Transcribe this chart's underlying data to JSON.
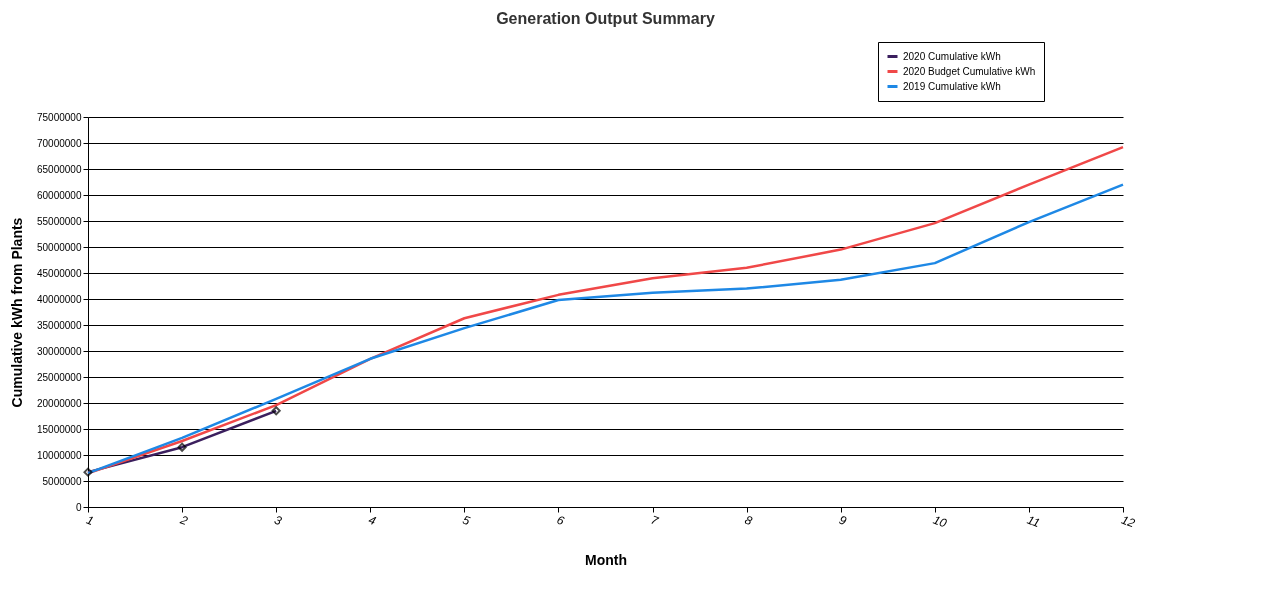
{
  "chart_data": {
    "type": "line",
    "title": "Generation Output Summary",
    "xlabel": "Month",
    "ylabel": "Cumulative kWh from Plants",
    "xlim": [
      1,
      12
    ],
    "xticks": [
      1,
      2,
      3,
      4,
      5,
      6,
      7,
      8,
      9,
      10,
      11,
      12
    ],
    "ylim": [
      0,
      75000000
    ],
    "yticks": [
      0,
      5000000,
      10000000,
      15000000,
      20000000,
      25000000,
      30000000,
      35000000,
      40000000,
      45000000,
      50000000,
      55000000,
      60000000,
      65000000,
      70000000,
      75000000
    ],
    "grid": "y",
    "legend": "top right",
    "series": [
      {
        "name": "2020 Cumulative kWh",
        "color": "#3b1f5e",
        "marker": "diamond",
        "x": [
          1,
          2,
          3
        ],
        "values": [
          6700000,
          11500000,
          18500000
        ]
      },
      {
        "name": "2020 Budget Cumulative kWh",
        "color": "#f04848",
        "x": [
          1,
          2,
          3,
          4,
          5,
          6,
          7,
          8,
          9,
          10,
          11,
          12
        ],
        "values": [
          6500000,
          12700000,
          19600000,
          28500000,
          36300000,
          40800000,
          44000000,
          46000000,
          49500000,
          54600000,
          62000000,
          69200000
        ]
      },
      {
        "name": "2019 Cumulative kWh",
        "color": "#1e88e5",
        "x": [
          1,
          2,
          3,
          4,
          5,
          6,
          7,
          8,
          9,
          10,
          11,
          12
        ],
        "values": [
          6500000,
          13300000,
          20800000,
          28500000,
          34400000,
          39800000,
          41200000,
          42000000,
          43700000,
          46900000,
          54800000,
          62000000
        ]
      }
    ]
  }
}
